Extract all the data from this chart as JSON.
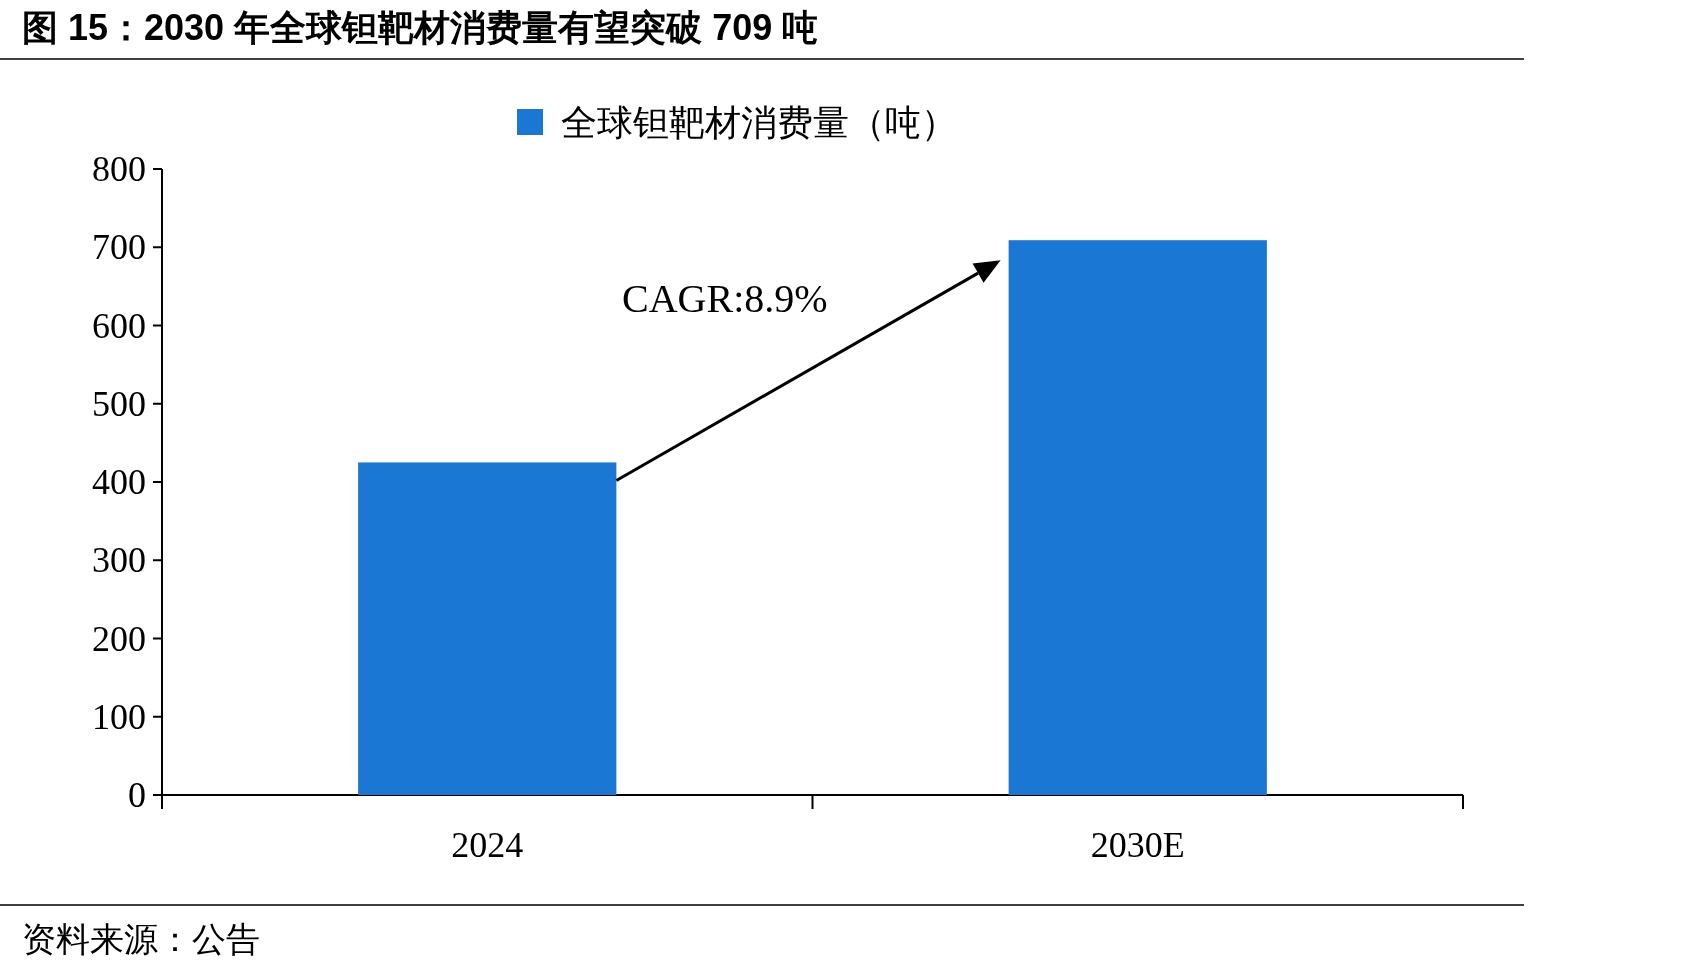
{
  "chart_data": {
    "type": "bar",
    "title": "图 15：2030 年全球钽靶材消费量有望突破 709 吨",
    "categories": [
      "2024",
      "2030E"
    ],
    "series": [
      {
        "name": "全球钽靶材消费量（吨）",
        "color": "#1a78d4",
        "values": [
          425,
          709
        ]
      }
    ],
    "ylim": [
      0,
      800
    ],
    "yticks": [
      0,
      100,
      200,
      300,
      400,
      500,
      600,
      700,
      800
    ],
    "legend": "top",
    "grid": false,
    "annotations": [
      "CAGR:8.9%",
      "资料来源：公告"
    ]
  }
}
